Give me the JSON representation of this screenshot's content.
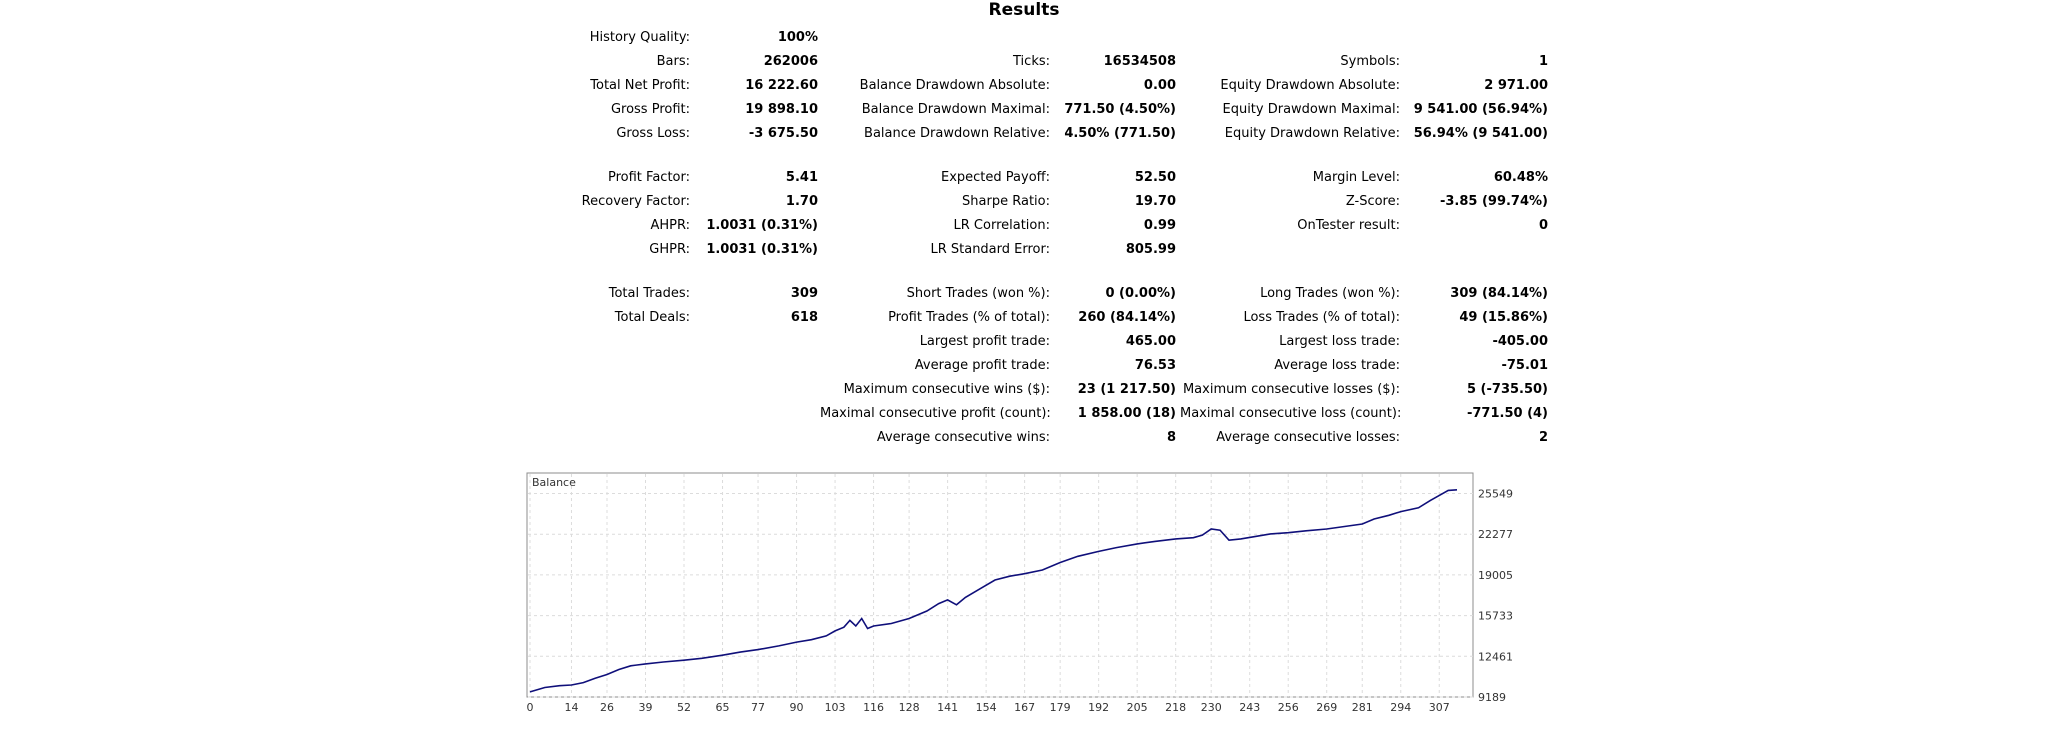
{
  "report": {
    "title": "Results",
    "stats": [
      {
        "col": 1,
        "row": 0,
        "label": "History Quality:",
        "value": "100%"
      },
      {
        "col": 1,
        "row": 1,
        "label": "Bars:",
        "value": "262006"
      },
      {
        "col": 2,
        "row": 1,
        "label": "Ticks:",
        "value": "16534508"
      },
      {
        "col": 3,
        "row": 1,
        "label": "Symbols:",
        "value": "1"
      },
      {
        "col": 1,
        "row": 2,
        "label": "Total Net Profit:",
        "value": "16 222.60"
      },
      {
        "col": 2,
        "row": 2,
        "label": "Balance Drawdown Absolute:",
        "value": "0.00"
      },
      {
        "col": 3,
        "row": 2,
        "label": "Equity Drawdown Absolute:",
        "value": "2 971.00"
      },
      {
        "col": 1,
        "row": 3,
        "label": "Gross Profit:",
        "value": "19 898.10"
      },
      {
        "col": 2,
        "row": 3,
        "label": "Balance Drawdown Maximal:",
        "value": "771.50 (4.50%)"
      },
      {
        "col": 3,
        "row": 3,
        "label": "Equity Drawdown Maximal:",
        "value": "9 541.00 (56.94%)"
      },
      {
        "col": 1,
        "row": 4,
        "label": "Gross Loss:",
        "value": "-3 675.50"
      },
      {
        "col": 2,
        "row": 4,
        "label": "Balance Drawdown Relative:",
        "value": "4.50% (771.50)"
      },
      {
        "col": 3,
        "row": 4,
        "label": "Equity Drawdown Relative:",
        "value": "56.94% (9 541.00)"
      },
      {
        "col": 1,
        "row": 5,
        "label": "Profit Factor:",
        "value": "5.41"
      },
      {
        "col": 2,
        "row": 5,
        "label": "Expected Payoff:",
        "value": "52.50"
      },
      {
        "col": 3,
        "row": 5,
        "label": "Margin Level:",
        "value": "60.48%"
      },
      {
        "col": 1,
        "row": 6,
        "label": "Recovery Factor:",
        "value": "1.70"
      },
      {
        "col": 2,
        "row": 6,
        "label": "Sharpe Ratio:",
        "value": "19.70"
      },
      {
        "col": 3,
        "row": 6,
        "label": "Z-Score:",
        "value": "-3.85 (99.74%)"
      },
      {
        "col": 1,
        "row": 7,
        "label": "AHPR:",
        "value": "1.0031 (0.31%)"
      },
      {
        "col": 2,
        "row": 7,
        "label": "LR Correlation:",
        "value": "0.99"
      },
      {
        "col": 3,
        "row": 7,
        "label": "OnTester result:",
        "value": "0"
      },
      {
        "col": 1,
        "row": 8,
        "label": "GHPR:",
        "value": "1.0031 (0.31%)"
      },
      {
        "col": 2,
        "row": 8,
        "label": "LR Standard Error:",
        "value": "805.99"
      },
      {
        "col": 1,
        "row": 9,
        "label": "Total Trades:",
        "value": "309"
      },
      {
        "col": 2,
        "row": 9,
        "label": "Short Trades (won %):",
        "value": "0 (0.00%)"
      },
      {
        "col": 3,
        "row": 9,
        "label": "Long Trades (won %):",
        "value": "309 (84.14%)"
      },
      {
        "col": 1,
        "row": 10,
        "label": "Total Deals:",
        "value": "618"
      },
      {
        "col": 2,
        "row": 10,
        "label": "Profit Trades (% of total):",
        "value": "260 (84.14%)"
      },
      {
        "col": 3,
        "row": 10,
        "label": "Loss Trades (% of total):",
        "value": "49 (15.86%)"
      },
      {
        "col": 2,
        "row": 11,
        "label": "Largest profit trade:",
        "value": "465.00"
      },
      {
        "col": 3,
        "row": 11,
        "label": "Largest loss trade:",
        "value": "-405.00"
      },
      {
        "col": 2,
        "row": 12,
        "label": "Average profit trade:",
        "value": "76.53"
      },
      {
        "col": 3,
        "row": 12,
        "label": "Average loss trade:",
        "value": "-75.01"
      },
      {
        "col": 2,
        "row": 13,
        "label": "Maximum consecutive wins ($):",
        "value": "23 (1 217.50)"
      },
      {
        "col": 3,
        "row": 13,
        "label": "Maximum consecutive losses ($):",
        "value": "5 (-735.50)"
      },
      {
        "col": 2,
        "row": 14,
        "label": "Maximal consecutive profit (count):",
        "value": "1 858.00 (18)"
      },
      {
        "col": 3,
        "row": 14,
        "label": "Maximal consecutive loss (count):",
        "value": "-771.50 (4)"
      },
      {
        "col": 2,
        "row": 15,
        "label": "Average consecutive wins:",
        "value": "8"
      },
      {
        "col": 3,
        "row": 15,
        "label": "Average consecutive losses:",
        "value": "2"
      }
    ]
  },
  "chart_data": {
    "type": "line",
    "series_label": "Balance",
    "x_ticks": [
      0,
      14,
      26,
      39,
      52,
      65,
      77,
      90,
      103,
      116,
      128,
      141,
      154,
      167,
      179,
      192,
      205,
      218,
      230,
      243,
      256,
      269,
      281,
      294,
      307
    ],
    "y_ticks": [
      9189,
      12461,
      15733,
      19005,
      22277,
      25549
    ],
    "xlim": [
      0,
      314
    ],
    "ylim": [
      9189,
      27200
    ],
    "grid": true,
    "line_color": "#0f0f7a",
    "points": [
      [
        0,
        9600
      ],
      [
        5,
        9950
      ],
      [
        10,
        10100
      ],
      [
        14,
        10150
      ],
      [
        18,
        10350
      ],
      [
        22,
        10700
      ],
      [
        26,
        11000
      ],
      [
        30,
        11400
      ],
      [
        34,
        11700
      ],
      [
        39,
        11850
      ],
      [
        45,
        12000
      ],
      [
        52,
        12150
      ],
      [
        58,
        12300
      ],
      [
        65,
        12550
      ],
      [
        71,
        12800
      ],
      [
        77,
        13000
      ],
      [
        84,
        13300
      ],
      [
        90,
        13600
      ],
      [
        95,
        13800
      ],
      [
        100,
        14100
      ],
      [
        103,
        14500
      ],
      [
        106,
        14800
      ],
      [
        108,
        15350
      ],
      [
        110,
        14900
      ],
      [
        112,
        15500
      ],
      [
        114,
        14700
      ],
      [
        116,
        14900
      ],
      [
        122,
        15100
      ],
      [
        128,
        15500
      ],
      [
        134,
        16100
      ],
      [
        138,
        16700
      ],
      [
        141,
        17000
      ],
      [
        144,
        16600
      ],
      [
        147,
        17200
      ],
      [
        152,
        17900
      ],
      [
        157,
        18600
      ],
      [
        162,
        18900
      ],
      [
        167,
        19100
      ],
      [
        173,
        19400
      ],
      [
        179,
        20000
      ],
      [
        185,
        20500
      ],
      [
        192,
        20900
      ],
      [
        198,
        21200
      ],
      [
        205,
        21500
      ],
      [
        211,
        21700
      ],
      [
        218,
        21900
      ],
      [
        224,
        22000
      ],
      [
        227,
        22200
      ],
      [
        230,
        22700
      ],
      [
        233,
        22600
      ],
      [
        236,
        21800
      ],
      [
        240,
        21900
      ],
      [
        245,
        22100
      ],
      [
        250,
        22300
      ],
      [
        256,
        22400
      ],
      [
        262,
        22550
      ],
      [
        269,
        22700
      ],
      [
        275,
        22900
      ],
      [
        281,
        23100
      ],
      [
        285,
        23500
      ],
      [
        290,
        23800
      ],
      [
        294,
        24100
      ],
      [
        300,
        24400
      ],
      [
        304,
        25000
      ],
      [
        307,
        25400
      ],
      [
        310,
        25800
      ],
      [
        313,
        25850
      ]
    ]
  }
}
